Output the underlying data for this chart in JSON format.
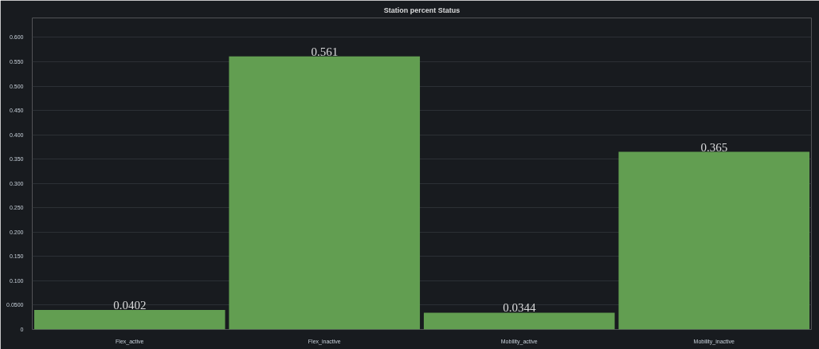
{
  "chart_data": {
    "type": "bar",
    "title": "Station percent Status",
    "categories": [
      "Flex_active",
      "Flex_inactive",
      "Mobility_active",
      "Mobility_inactive"
    ],
    "values": [
      0.0402,
      0.561,
      0.0344,
      0.365
    ],
    "color": "#629e51",
    "data_labels": true,
    "ylim": [
      0,
      0.64
    ],
    "yticks": [
      0,
      {
        "value": 0.05,
        "label": "0.0500"
      },
      {
        "value": 0.1,
        "label": "0.100"
      },
      {
        "value": 0.15,
        "label": "0.150"
      },
      {
        "value": 0.2,
        "label": "0.200"
      },
      {
        "value": 0.25,
        "label": "0.250"
      },
      {
        "value": 0.3,
        "label": "0.300"
      },
      {
        "value": 0.35,
        "label": "0.350"
      },
      {
        "value": 0.4,
        "label": "0.400"
      },
      {
        "value": 0.45,
        "label": "0.450"
      },
      {
        "value": 0.5,
        "label": "0.500"
      },
      {
        "value": 0.55,
        "label": "0.550"
      },
      {
        "value": 0.6,
        "label": "0.600"
      }
    ],
    "grid": "y"
  }
}
